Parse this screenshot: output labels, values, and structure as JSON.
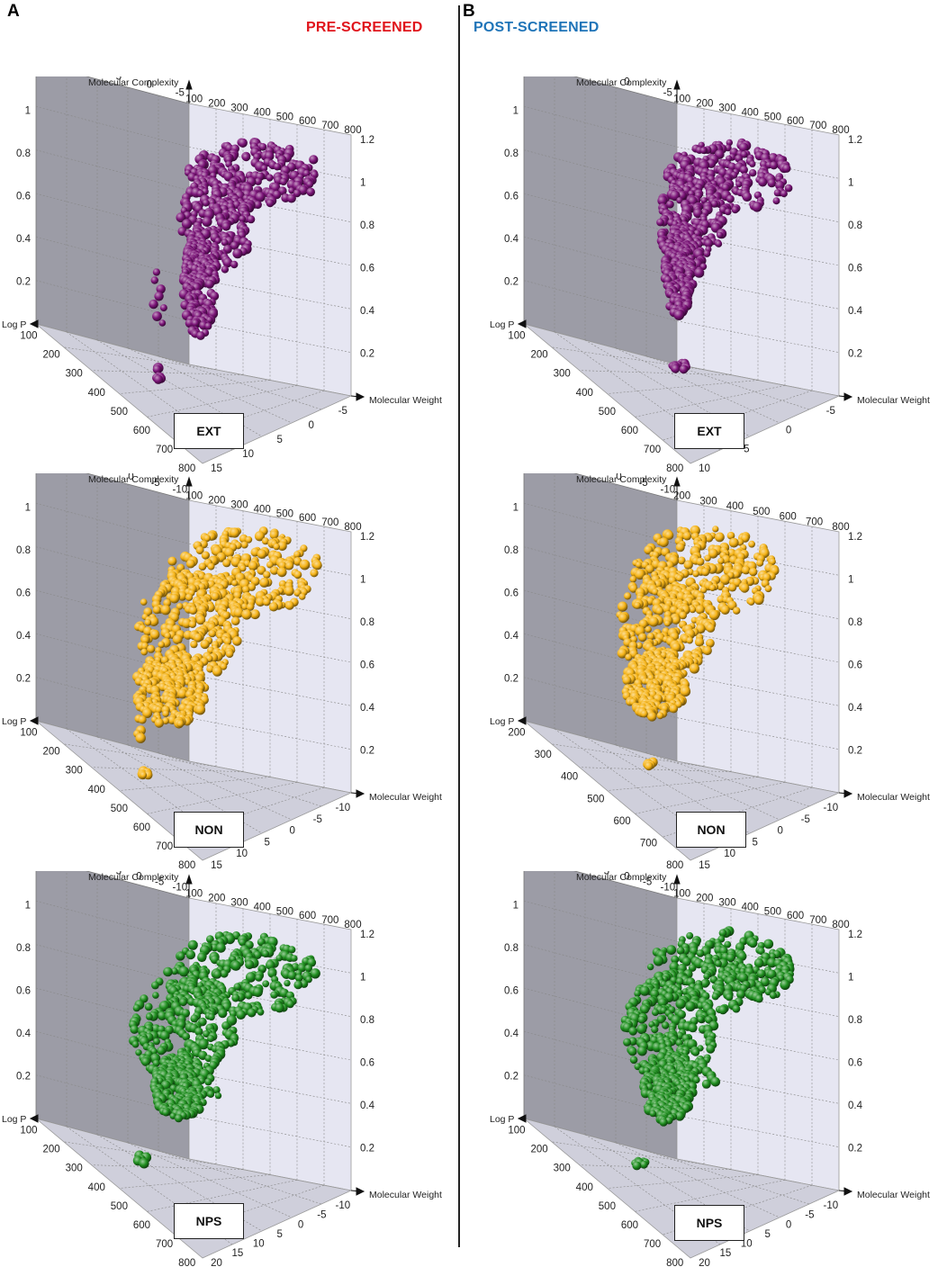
{
  "panels": [
    {
      "letter": "A",
      "title": "PRE-SCREENED",
      "color": "#e0141b"
    },
    {
      "letter": "B",
      "title": "POST-SCREENED",
      "color": "#1f74b8"
    }
  ],
  "axis_names": {
    "z": "Molecular Complexity",
    "x": "Log P",
    "y": "Molecular Weight"
  },
  "chart_data": [
    {
      "type": "scatter",
      "subtype": "3d",
      "panel": "A",
      "label": "EXT",
      "color": "#7b1478",
      "top_logp_ticks": [
        "15",
        "10",
        "5",
        "0",
        "-5"
      ],
      "mw_ticks": [
        "100",
        "200",
        "300",
        "400",
        "500",
        "600",
        "700",
        "800"
      ],
      "z_ticks": [
        "1.2",
        "1",
        "0.8",
        "0.6",
        "0.4",
        "0.2"
      ],
      "logp_front_ticks": [
        "-5",
        "0",
        "5",
        "10",
        "15"
      ]
    },
    {
      "type": "scatter",
      "subtype": "3d",
      "panel": "B",
      "label": "EXT",
      "color": "#7b1478",
      "top_logp_ticks": [
        "10",
        "5",
        "0",
        "-5"
      ],
      "mw_ticks": [
        "100",
        "200",
        "300",
        "400",
        "500",
        "600",
        "700",
        "800"
      ],
      "z_ticks": [
        "1.2",
        "1",
        "0.8",
        "0.6",
        "0.4",
        "0.2"
      ],
      "logp_front_ticks": [
        "-5",
        "0",
        "5",
        "10"
      ]
    },
    {
      "type": "scatter",
      "subtype": "3d",
      "panel": "A",
      "label": "NON",
      "color": "#f5b316",
      "top_logp_ticks": [
        "15",
        "10",
        "5",
        "0",
        "-5",
        "-10"
      ],
      "mw_ticks": [
        "100",
        "200",
        "300",
        "400",
        "500",
        "600",
        "700",
        "800"
      ],
      "z_ticks": [
        "1.2",
        "1",
        "0.8",
        "0.6",
        "0.4",
        "0.2"
      ],
      "logp_front_ticks": [
        "-10",
        "-5",
        "0",
        "5",
        "10",
        "15"
      ]
    },
    {
      "type": "scatter",
      "subtype": "3d",
      "panel": "B",
      "label": "NON",
      "color": "#f5b316",
      "top_logp_ticks": [
        "15",
        "10",
        "5",
        "0",
        "-5",
        "-10"
      ],
      "mw_ticks": [
        "200",
        "300",
        "400",
        "500",
        "600",
        "700",
        "800"
      ],
      "z_ticks": [
        "1.2",
        "1",
        "0.8",
        "0.6",
        "0.4",
        "0.2"
      ],
      "logp_front_ticks": [
        "-10",
        "-5",
        "0",
        "5",
        "10",
        "15"
      ]
    },
    {
      "type": "scatter",
      "subtype": "3d",
      "panel": "A",
      "label": "NPS",
      "color": "#1f8f1f",
      "top_logp_ticks": [
        "20",
        "15",
        "10",
        "5",
        "0",
        "-5",
        "-10"
      ],
      "mw_ticks": [
        "100",
        "200",
        "300",
        "400",
        "500",
        "600",
        "700",
        "800"
      ],
      "z_ticks": [
        "1.2",
        "1",
        "0.8",
        "0.6",
        "0.4",
        "0.2"
      ],
      "logp_front_ticks": [
        "-10",
        "-5",
        "0",
        "5",
        "10",
        "15",
        "20"
      ]
    },
    {
      "type": "scatter",
      "subtype": "3d",
      "panel": "B",
      "label": "NPS",
      "color": "#1f8f1f",
      "top_logp_ticks": [
        "20",
        "15",
        "10",
        "5",
        "0",
        "-5",
        "-10"
      ],
      "mw_ticks": [
        "100",
        "200",
        "300",
        "400",
        "500",
        "600",
        "700",
        "800"
      ],
      "z_ticks": [
        "1.2",
        "1",
        "0.8",
        "0.6",
        "0.4",
        "0.2"
      ],
      "logp_front_ticks": [
        "-10",
        "-5",
        "0",
        "5",
        "10",
        "15",
        "20"
      ]
    }
  ]
}
